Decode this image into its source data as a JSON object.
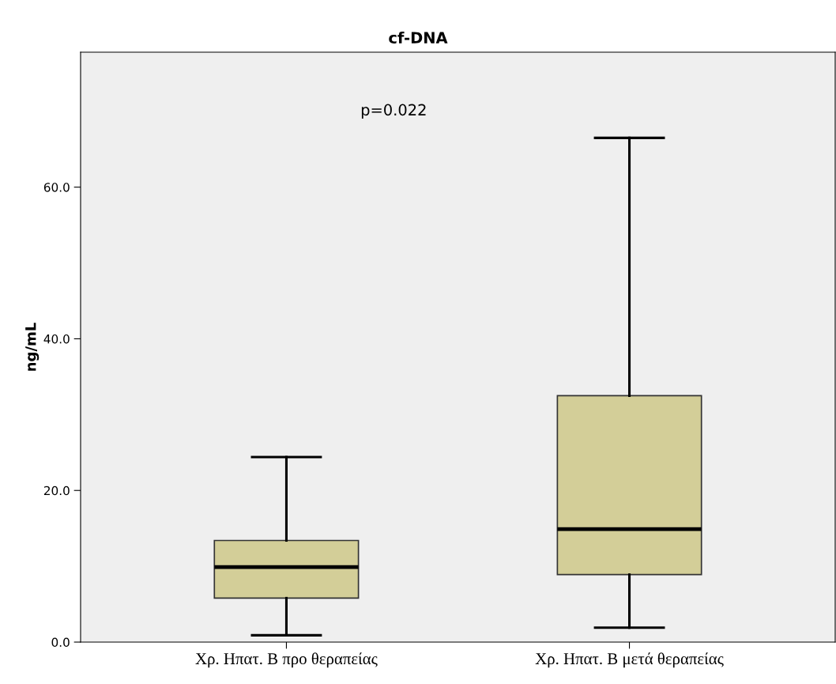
{
  "chart_data": {
    "type": "box",
    "title": "cf-DNA",
    "ylabel": "ng/mL",
    "categories": [
      "Χρ. Ηπατ. Β προ θεραπείας",
      "Χρ. Ηπατ. Β μετά θεραπείας"
    ],
    "boxes": [
      {
        "low": 0.9,
        "q1": 5.8,
        "median": 9.9,
        "q3": 13.4,
        "high": 24.4
      },
      {
        "low": 1.9,
        "q1": 8.9,
        "median": 14.9,
        "q3": 32.5,
        "high": 66.5
      }
    ],
    "color": "#d3ce98",
    "ylim": [
      0,
      77.8
    ],
    "yticks": [
      {
        "value": 0,
        "label": "0.0"
      },
      {
        "value": 20,
        "label": "20.0"
      },
      {
        "value": 40,
        "label": "40.0"
      },
      {
        "value": 60,
        "label": "60.0"
      }
    ],
    "annotations": [
      "p=0.022"
    ],
    "grid": false
  }
}
